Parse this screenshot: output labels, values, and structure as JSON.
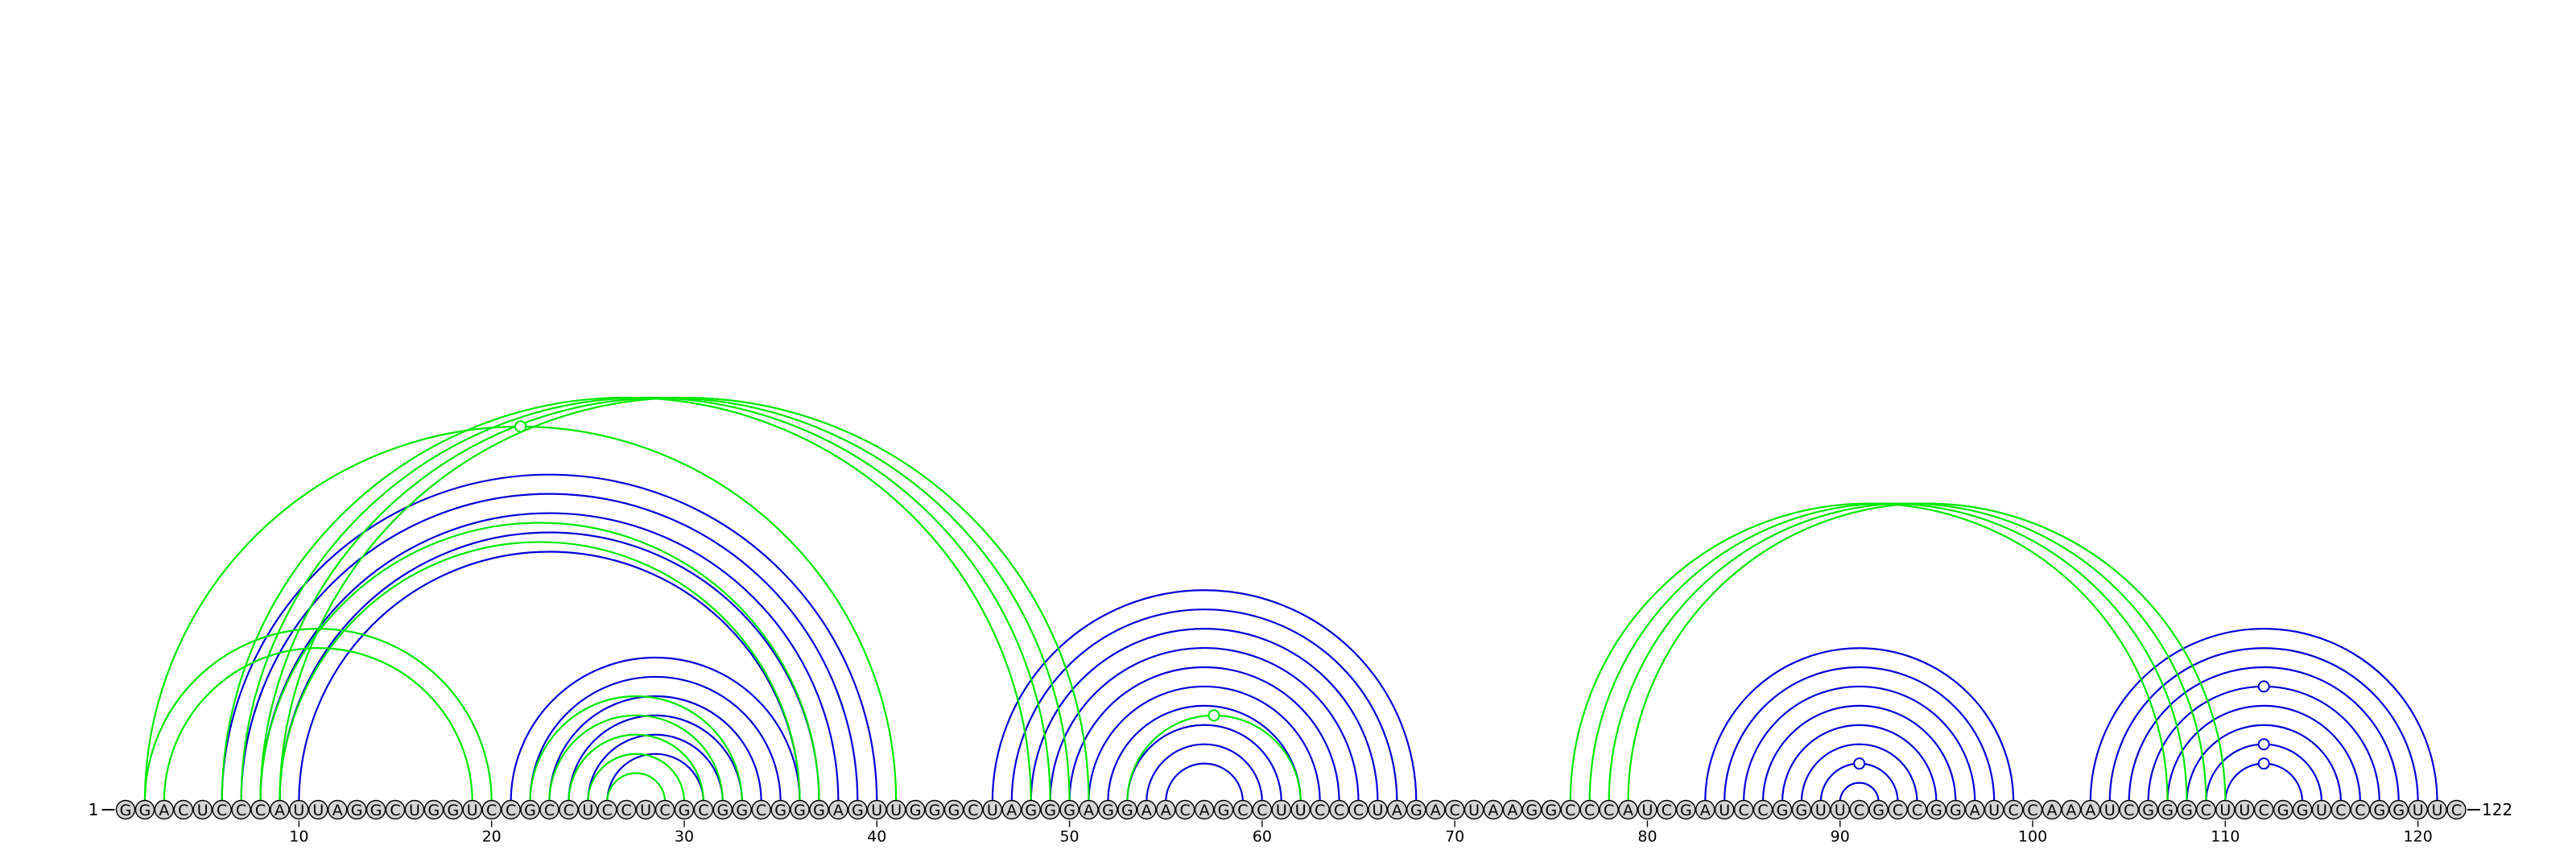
{
  "diagram": {
    "sequence": "GGACUCCCAUUAGGCUGGUCCGCCUCCUCGCGGCGGGAGUUGGGCUAGGGAGGAACAGCCUUCCCUAGACUAAGGCCCAUCGAUCCGGUUCGCCGGAUCCAAAUCGGGCUUCGGUCCGGUUC",
    "start_label": "1",
    "end_label": "122",
    "tick_labels": [
      "10",
      "20",
      "30",
      "40",
      "50",
      "60",
      "70",
      "80",
      "90",
      "100",
      "110",
      "120"
    ],
    "colors": {
      "blue": "#0000d8",
      "green": "#00e800",
      "nucleotide_fill": "#d4d4d4",
      "text": "#000000"
    },
    "arcs": [
      {
        "i": 6,
        "j": 40,
        "color": "blue"
      },
      {
        "i": 7,
        "j": 39,
        "color": "blue"
      },
      {
        "i": 8,
        "j": 38,
        "color": "blue"
      },
      {
        "i": 9,
        "j": 37,
        "color": "blue"
      },
      {
        "i": 10,
        "j": 36,
        "color": "blue"
      },
      {
        "i": 21,
        "j": 36,
        "color": "blue"
      },
      {
        "i": 22,
        "j": 35,
        "color": "blue"
      },
      {
        "i": 23,
        "j": 34,
        "color": "blue"
      },
      {
        "i": 24,
        "j": 33,
        "color": "blue"
      },
      {
        "i": 25,
        "j": 32,
        "color": "blue"
      },
      {
        "i": 26,
        "j": 31,
        "color": "blue"
      },
      {
        "i": 46,
        "j": 68,
        "color": "blue"
      },
      {
        "i": 47,
        "j": 67,
        "color": "blue"
      },
      {
        "i": 48,
        "j": 66,
        "color": "blue"
      },
      {
        "i": 49,
        "j": 65,
        "color": "blue"
      },
      {
        "i": 50,
        "j": 64,
        "color": "blue"
      },
      {
        "i": 51,
        "j": 63,
        "color": "blue"
      },
      {
        "i": 52,
        "j": 62,
        "color": "blue"
      },
      {
        "i": 53,
        "j": 61,
        "color": "blue"
      },
      {
        "i": 54,
        "j": 60,
        "color": "blue"
      },
      {
        "i": 55,
        "j": 59,
        "color": "blue"
      },
      {
        "i": 83,
        "j": 99,
        "color": "blue"
      },
      {
        "i": 84,
        "j": 98,
        "color": "blue"
      },
      {
        "i": 85,
        "j": 97,
        "color": "blue"
      },
      {
        "i": 86,
        "j": 96,
        "color": "blue"
      },
      {
        "i": 87,
        "j": 95,
        "color": "blue"
      },
      {
        "i": 88,
        "j": 94,
        "color": "blue"
      },
      {
        "i": 89,
        "j": 93,
        "color": "blue"
      },
      {
        "i": 90,
        "j": 92,
        "color": "blue"
      },
      {
        "i": 103,
        "j": 121,
        "color": "blue"
      },
      {
        "i": 104,
        "j": 120,
        "color": "blue"
      },
      {
        "i": 105,
        "j": 119,
        "color": "blue"
      },
      {
        "i": 106,
        "j": 118,
        "color": "blue"
      },
      {
        "i": 107,
        "j": 117,
        "color": "blue"
      },
      {
        "i": 108,
        "j": 116,
        "color": "blue"
      },
      {
        "i": 109,
        "j": 115,
        "color": "blue"
      },
      {
        "i": 110,
        "j": 114,
        "color": "blue"
      },
      {
        "i": 2,
        "j": 41,
        "color": "green"
      },
      {
        "i": 2,
        "j": 20,
        "color": "green"
      },
      {
        "i": 3,
        "j": 19,
        "color": "green"
      },
      {
        "i": 6,
        "j": 48,
        "color": "green"
      },
      {
        "i": 7,
        "j": 49,
        "color": "green"
      },
      {
        "i": 8,
        "j": 50,
        "color": "green"
      },
      {
        "i": 9,
        "j": 51,
        "color": "green"
      },
      {
        "i": 8,
        "j": 37,
        "color": "green"
      },
      {
        "i": 9,
        "j": 36,
        "color": "green"
      },
      {
        "i": 22,
        "j": 33,
        "color": "green"
      },
      {
        "i": 23,
        "j": 32,
        "color": "green"
      },
      {
        "i": 24,
        "j": 31,
        "color": "green"
      },
      {
        "i": 25,
        "j": 30,
        "color": "green"
      },
      {
        "i": 26,
        "j": 29,
        "color": "green"
      },
      {
        "i": 53,
        "j": 62,
        "color": "green"
      },
      {
        "i": 76,
        "j": 107,
        "color": "green"
      },
      {
        "i": 77,
        "j": 108,
        "color": "green"
      },
      {
        "i": 78,
        "j": 109,
        "color": "green"
      },
      {
        "i": 79,
        "j": 110,
        "color": "green"
      }
    ],
    "marker_arcs": [
      {
        "i": 2,
        "j": 41,
        "color": "green"
      },
      {
        "i": 53,
        "j": 62,
        "color": "green"
      },
      {
        "i": 89,
        "j": 93,
        "color": "blue"
      },
      {
        "i": 106,
        "j": 118,
        "color": "blue"
      },
      {
        "i": 109,
        "j": 115,
        "color": "blue"
      },
      {
        "i": 110,
        "j": 114,
        "color": "blue"
      }
    ]
  }
}
